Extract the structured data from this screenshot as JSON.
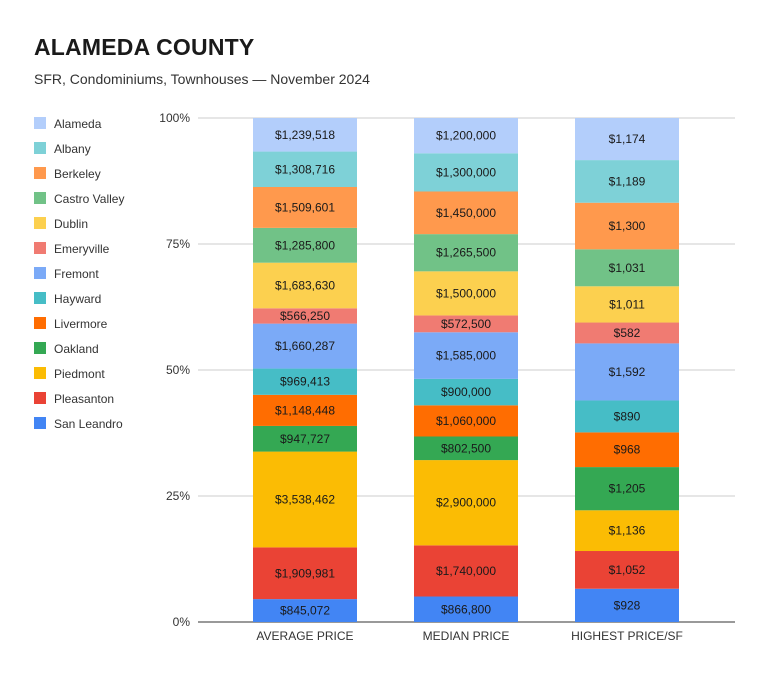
{
  "chart_data": {
    "type": "bar",
    "stacked": "percent",
    "title": "ALAMEDA COUNTY",
    "subtitle": "SFR, Condominiums, Townhouses — November 2024",
    "categories": [
      "AVERAGE PRICE",
      "MEDIAN PRICE",
      "HIGHEST PRICE/SF"
    ],
    "y_ticks": [
      "0%",
      "25%",
      "50%",
      "75%",
      "100%"
    ],
    "ylim": [
      0,
      100
    ],
    "legend_position": "left",
    "series": [
      {
        "name": "San Leandro",
        "color": "#4285f4",
        "values": [
          845072,
          866800,
          928
        ],
        "labels": [
          "$845,072",
          "$866,800",
          "$928"
        ]
      },
      {
        "name": "Pleasanton",
        "color": "#ea4335",
        "values": [
          1909981,
          1740000,
          1052
        ],
        "labels": [
          "$1,909,981",
          "$1,740,000",
          "$1,052"
        ]
      },
      {
        "name": "Piedmont",
        "color": "#fbbc04",
        "values": [
          3538462,
          2900000,
          1136
        ],
        "labels": [
          "$3,538,462",
          "$2,900,000",
          "$1,136"
        ]
      },
      {
        "name": "Oakland",
        "color": "#34a853",
        "values": [
          947727,
          802500,
          1205
        ],
        "labels": [
          "$947,727",
          "$802,500",
          "$1,205"
        ]
      },
      {
        "name": "Livermore",
        "color": "#ff6d01",
        "values": [
          1148448,
          1060000,
          968
        ],
        "labels": [
          "$1,148,448",
          "$1,060,000",
          "$968"
        ]
      },
      {
        "name": "Hayward",
        "color": "#46bdc6",
        "values": [
          969413,
          900000,
          890
        ],
        "labels": [
          "$969,413",
          "$900,000",
          "$890"
        ]
      },
      {
        "name": "Fremont",
        "color": "#7baaf7",
        "values": [
          1660287,
          1585000,
          1592
        ],
        "labels": [
          "$1,660,287",
          "$1,585,000",
          "$1,592"
        ]
      },
      {
        "name": "Emeryville",
        "color": "#f07b72",
        "values": [
          566250,
          572500,
          582
        ],
        "labels": [
          "$566,250",
          "$572,500",
          "$582"
        ]
      },
      {
        "name": "Dublin",
        "color": "#fcd04f",
        "values": [
          1683630,
          1500000,
          1011
        ],
        "labels": [
          "$1,683,630",
          "$1,500,000",
          "$1,011"
        ]
      },
      {
        "name": "Castro Valley",
        "color": "#71c287",
        "values": [
          1285800,
          1265500,
          1031
        ],
        "labels": [
          "$1,285,800",
          "$1,265,500",
          "$1,031"
        ]
      },
      {
        "name": "Berkeley",
        "color": "#ff994d",
        "values": [
          1509601,
          1450000,
          1300
        ],
        "labels": [
          "$1,509,601",
          "$1,450,000",
          "$1,300"
        ]
      },
      {
        "name": "Albany",
        "color": "#7ed1d7",
        "values": [
          1308716,
          1300000,
          1189
        ],
        "labels": [
          "$1,308,716",
          "$1,300,000",
          "$1,189"
        ]
      },
      {
        "name": "Alameda",
        "color": "#b3cefb",
        "values": [
          1239518,
          1200000,
          1174
        ],
        "labels": [
          "$1,239,518",
          "$1,200,000",
          "$1,174"
        ]
      }
    ],
    "legend_order": [
      "Alameda",
      "Albany",
      "Berkeley",
      "Castro Valley",
      "Dublin",
      "Emeryville",
      "Fremont",
      "Hayward",
      "Livermore",
      "Oakland",
      "Piedmont",
      "Pleasanton",
      "San Leandro"
    ]
  }
}
